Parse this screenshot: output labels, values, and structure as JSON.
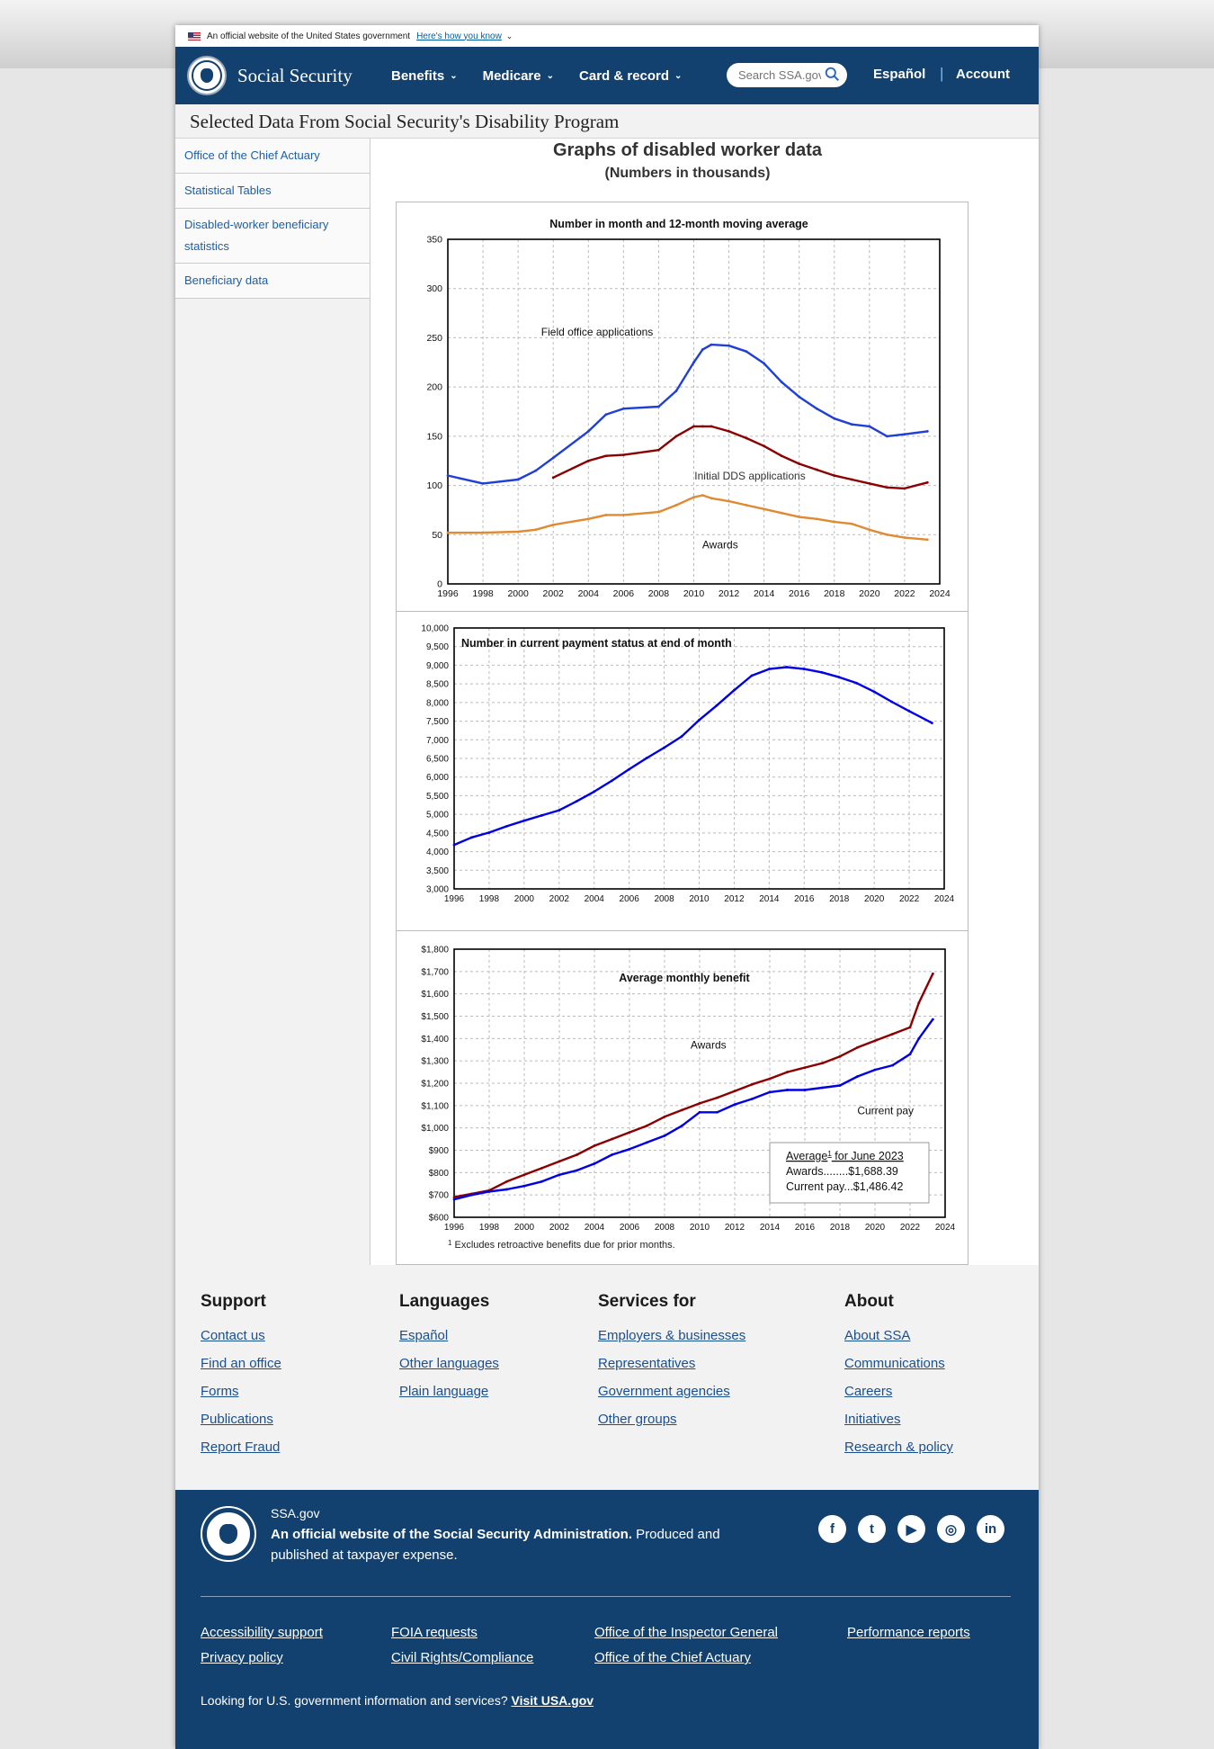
{
  "gov_banner": {
    "text": "An official website of the United States government",
    "link": "Here's how you know"
  },
  "header": {
    "brand": "Social Security",
    "nav": [
      "Benefits",
      "Medicare",
      "Card & record"
    ],
    "search_placeholder": "Search SSA.gov",
    "lang": "Español",
    "sep": "|",
    "account": "Account"
  },
  "page_title": "Selected Data From Social Security's Disability Program",
  "sidebar": {
    "items": [
      "Office of the Chief Actuary",
      "Statistical Tables",
      "Disabled-worker beneficiary statistics",
      "Beneficiary data"
    ]
  },
  "main": {
    "title": "Graphs of disabled worker data",
    "subtitle": "(Numbers in thousands)"
  },
  "chart_data": [
    {
      "type": "line",
      "title": "Number in month and 12-month moving average",
      "x_ticks": [
        "1996",
        "1998",
        "2000",
        "2002",
        "2004",
        "2006",
        "2008",
        "2010",
        "2012",
        "2014",
        "2016",
        "2018",
        "2020",
        "2022",
        "2024"
      ],
      "y_ticks": [
        "0",
        "50",
        "100",
        "150",
        "200",
        "250",
        "300",
        "350"
      ],
      "ylim": [
        0,
        350
      ],
      "xlim": [
        1996,
        2024
      ],
      "grid": true,
      "x": [
        1996,
        1998,
        2000,
        2001,
        2002,
        2004,
        2005,
        2006,
        2008,
        2009,
        2010,
        2010.5,
        2011,
        2012,
        2013,
        2014,
        2015,
        2016,
        2017,
        2018,
        2019,
        2020,
        2021,
        2022,
        2023.3
      ],
      "series": [
        {
          "name": "Field office applications",
          "color": "#1f3fd6",
          "values": [
            110,
            102,
            106,
            115,
            128,
            155,
            172,
            178,
            180,
            196,
            225,
            238,
            243,
            242,
            236,
            224,
            205,
            190,
            178,
            168,
            162,
            160,
            150,
            152,
            155
          ]
        },
        {
          "name": "Initial DDS applications",
          "color": "#8b0000",
          "values": [
            null,
            null,
            null,
            null,
            108,
            125,
            130,
            131,
            136,
            150,
            160,
            160,
            160,
            155,
            148,
            140,
            130,
            122,
            116,
            110,
            106,
            102,
            98,
            97,
            103
          ]
        },
        {
          "name": "Awards",
          "color": "#e08a34",
          "values": [
            52,
            52,
            53,
            55,
            60,
            66,
            70,
            70,
            73,
            80,
            88,
            90,
            87,
            84,
            80,
            76,
            72,
            68,
            66,
            63,
            61,
            55,
            50,
            47,
            45
          ]
        }
      ],
      "annotations": [
        "Field office applications",
        "Initial DDS applications",
        "Awards"
      ]
    },
    {
      "type": "line",
      "title": "Number in current payment status at end of month",
      "x_ticks": [
        "1996",
        "1998",
        "2000",
        "2002",
        "2004",
        "2006",
        "2008",
        "2010",
        "2012",
        "2014",
        "2016",
        "2018",
        "2020",
        "2022",
        "2024"
      ],
      "y_ticks": [
        "3,000",
        "3,500",
        "4,000",
        "4,500",
        "5,000",
        "5,500",
        "6,000",
        "6,500",
        "7,000",
        "7,500",
        "8,000",
        "8,500",
        "9,000",
        "9,500",
        "10,000"
      ],
      "ylim": [
        3000,
        10000
      ],
      "xlim": [
        1996,
        2024
      ],
      "grid": true,
      "x": [
        1996,
        1997,
        1998,
        1999,
        2000,
        2001,
        2002,
        2003,
        2004,
        2005,
        2006,
        2007,
        2008,
        2009,
        2010,
        2011,
        2012,
        2013,
        2014,
        2015,
        2016,
        2017,
        2018,
        2019,
        2020,
        2021,
        2022,
        2023.3
      ],
      "series": [
        {
          "name": "",
          "color": "#0000e6",
          "values": [
            4180,
            4380,
            4510,
            4680,
            4830,
            4970,
            5110,
            5350,
            5610,
            5900,
            6210,
            6510,
            6790,
            7090,
            7530,
            7920,
            8330,
            8720,
            8900,
            8950,
            8900,
            8810,
            8680,
            8520,
            8290,
            8020,
            7770,
            7450
          ]
        }
      ]
    },
    {
      "type": "line",
      "title": "Average monthly benefit",
      "x_ticks": [
        "1996",
        "1998",
        "2000",
        "2002",
        "2004",
        "2006",
        "2008",
        "2010",
        "2012",
        "2014",
        "2016",
        "2018",
        "2020",
        "2022",
        "2024"
      ],
      "y_ticks": [
        "$600",
        "$700",
        "$800",
        "$900",
        "$1,000",
        "$1,100",
        "$1,200",
        "$1,300",
        "$1,400",
        "$1,500",
        "$1,600",
        "$1,700",
        "$1,800"
      ],
      "ylim": [
        600,
        1800
      ],
      "xlim": [
        1996,
        2024
      ],
      "grid": true,
      "x": [
        1996,
        1997,
        1998,
        1999,
        2000,
        2001,
        2002,
        2003,
        2004,
        2005,
        2006,
        2007,
        2008,
        2009,
        2010,
        2011,
        2012,
        2013,
        2014,
        2015,
        2016,
        2017,
        2018,
        2019,
        2020,
        2021,
        2022,
        2022.5,
        2023.3
      ],
      "series": [
        {
          "name": "Awards",
          "color": "#8b0000",
          "values": [
            690,
            705,
            720,
            760,
            790,
            820,
            850,
            880,
            920,
            950,
            980,
            1010,
            1050,
            1080,
            1110,
            1135,
            1165,
            1195,
            1220,
            1250,
            1270,
            1290,
            1320,
            1360,
            1390,
            1420,
            1450,
            1560,
            1690
          ]
        },
        {
          "name": "Current pay",
          "color": "#0000e6",
          "values": [
            680,
            700,
            715,
            725,
            740,
            760,
            790,
            810,
            840,
            880,
            905,
            935,
            965,
            1010,
            1070,
            1070,
            1105,
            1130,
            1160,
            1170,
            1170,
            1180,
            1190,
            1230,
            1260,
            1280,
            1330,
            1400,
            1486
          ]
        }
      ],
      "annotations": [
        "Awards",
        "Current pay"
      ],
      "legend_box": {
        "title": "Average",
        "title_sup": "1",
        "title_rest": " for June 2023",
        "lines": [
          "Awards........$1,688.39",
          "Current pay...$1,486.42"
        ]
      },
      "footnote_sup": "1",
      "footnote": "Excludes retroactive  benefits  due for prior months."
    }
  ],
  "footer": {
    "columns": [
      {
        "title": "Support",
        "links": [
          "Contact us",
          "Find an office",
          "Forms",
          "Publications",
          "Report Fraud"
        ]
      },
      {
        "title": "Languages",
        "links": [
          "Español",
          "Other languages",
          "Plain language"
        ]
      },
      {
        "title": "Services for",
        "links": [
          "Employers & businesses",
          "Representatives",
          "Government agencies",
          "Other groups"
        ]
      },
      {
        "title": "About",
        "links": [
          "About SSA",
          "Communications",
          "Careers",
          "Initiatives",
          "Research & policy"
        ]
      }
    ],
    "site": "SSA.gov",
    "official_bold": "An official website of the Social Security Administration.",
    "official_rest": " Produced and published at taxpayer expense.",
    "social_icons": [
      "facebook-icon",
      "twitter-icon",
      "youtube-icon",
      "instagram-icon",
      "linkedin-icon"
    ],
    "social_glyphs": [
      "f",
      "t",
      "▶",
      "◎",
      "in"
    ],
    "links": [
      "Accessibility support",
      "FOIA requests",
      "Office of the Inspector General",
      "Performance reports",
      "Privacy policy",
      "Civil Rights/Compliance",
      "Office of the Chief Actuary"
    ],
    "usagov_text": "Looking for U.S. government information and services? ",
    "usagov_link": "Visit USA.gov"
  }
}
